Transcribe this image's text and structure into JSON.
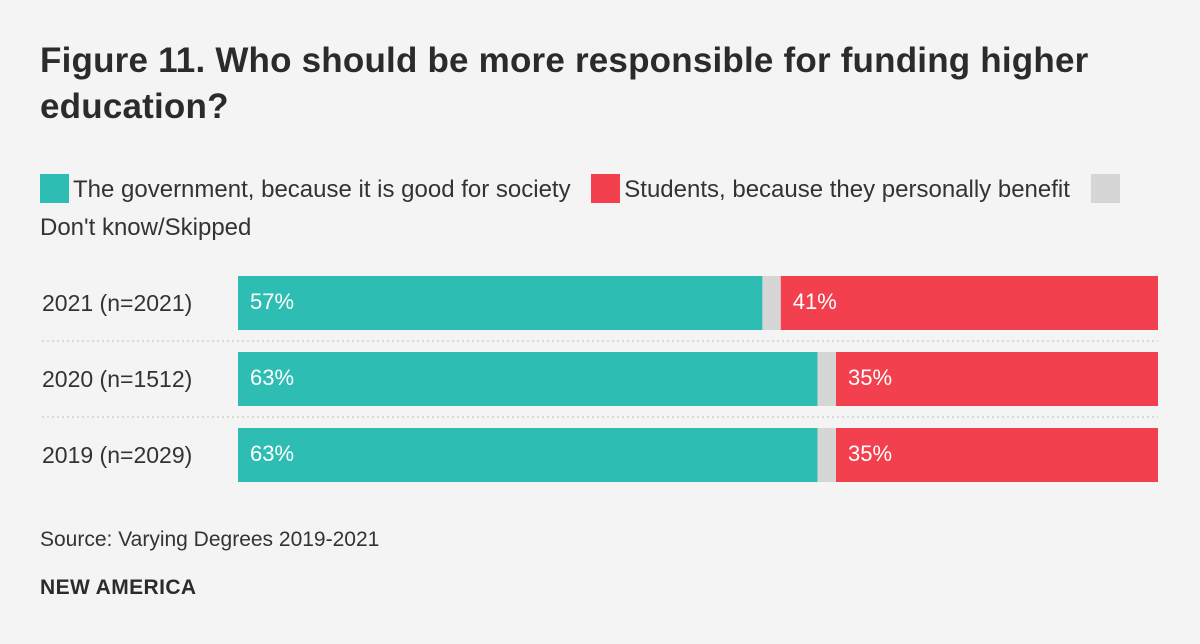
{
  "title": "Figure 11. Who should be more responsible for funding higher education?",
  "colors": {
    "government": "#2ebdb3",
    "students": "#f2404e",
    "dont_know": "#d6d6d6",
    "divider": "#cfcfcf"
  },
  "chart_data": {
    "type": "bar",
    "orientation": "horizontal",
    "stacked": true,
    "normalized": true,
    "title": "Figure 11. Who should be more responsible for funding higher education?",
    "categories": [
      "2021 (n=2021)",
      "2020 (n=1512)",
      "2019 (n=2029)"
    ],
    "series": [
      {
        "name": "The government, because it is good for society",
        "values": [
          57,
          63,
          63
        ],
        "labels": [
          "57%",
          "63%",
          "63%"
        ],
        "color": "#2ebdb3"
      },
      {
        "name": "Don't know/Skipped",
        "values": [
          2,
          2,
          2
        ],
        "labels": [
          "",
          "",
          ""
        ],
        "color": "#d6d6d6"
      },
      {
        "name": "Students, because they personally benefit",
        "values": [
          41,
          35,
          35
        ],
        "labels": [
          "41%",
          "35%",
          "35%"
        ],
        "color": "#f2404e"
      }
    ],
    "xlabel": "",
    "ylabel": "",
    "xlim": [
      0,
      100
    ],
    "legend": "top-left"
  },
  "source": "Source: Varying Degrees 2019-2021",
  "brand": "NEW AMERICA"
}
